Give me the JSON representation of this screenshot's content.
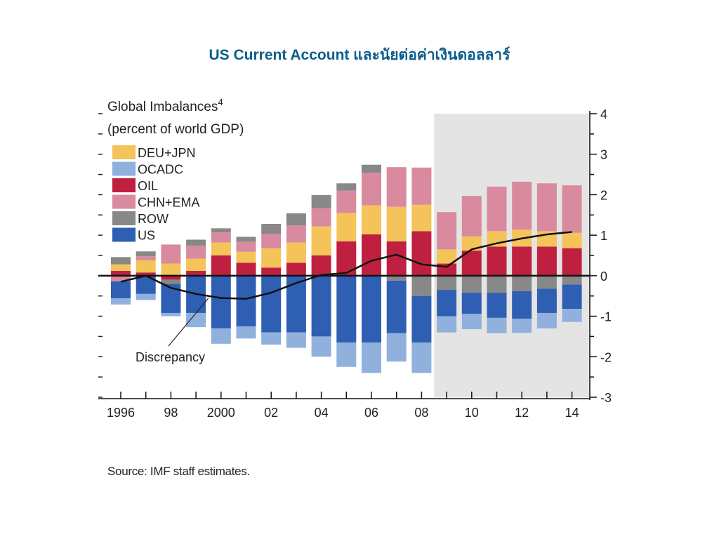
{
  "slide": {
    "title": "US Current Account และนัยต่อค่าเงินดอลลาร์",
    "source": "Source: IMF staff estimates."
  },
  "chart_data": {
    "type": "bar",
    "stacked": true,
    "title": "Global Imbalances",
    "title_superscript": "4",
    "subtitle": "(percent of world GDP)",
    "x": [
      1996,
      1997,
      1998,
      1999,
      2000,
      2001,
      2002,
      2003,
      2004,
      2005,
      2006,
      2007,
      2008,
      2009,
      2010,
      2011,
      2012,
      2013,
      2014
    ],
    "x_tick_labels": [
      "1996",
      "98",
      "2000",
      "02",
      "04",
      "06",
      "08",
      "10",
      "12",
      "14"
    ],
    "x_tick_years": [
      1996,
      1998,
      2000,
      2002,
      2004,
      2006,
      2008,
      2010,
      2012,
      2014
    ],
    "ylim": [
      -3,
      4
    ],
    "y_ticks": [
      "4",
      "3",
      "2",
      "1",
      "0",
      "-1",
      "-2",
      "-3"
    ],
    "y_tick_values": [
      4,
      3,
      2,
      1,
      0,
      -1,
      -2,
      -3
    ],
    "projection_shaded_from": 2009,
    "legend": [
      {
        "name": "DEU+JPN",
        "color": "#f4c35a"
      },
      {
        "name": "OCADC",
        "color": "#8fb1dc"
      },
      {
        "name": "OIL",
        "color": "#c0203f"
      },
      {
        "name": "CHN+EMA",
        "color": "#d98a9f"
      },
      {
        "name": "ROW",
        "color": "#888888"
      },
      {
        "name": "US",
        "color": "#2f5fb3"
      }
    ],
    "series": [
      {
        "name": "OIL",
        "color": "#c0203f",
        "values": [
          0.12,
          0.08,
          -0.1,
          0.12,
          0.5,
          0.32,
          0.2,
          0.32,
          0.5,
          0.85,
          1.02,
          0.85,
          1.1,
          0.3,
          0.62,
          0.72,
          0.72,
          0.72,
          0.68
        ]
      },
      {
        "name": "DEU+JPN",
        "color": "#f4c35a",
        "values": [
          0.16,
          0.3,
          0.3,
          0.3,
          0.32,
          0.27,
          0.48,
          0.5,
          0.72,
          0.7,
          0.72,
          0.85,
          0.65,
          0.35,
          0.35,
          0.38,
          0.42,
          0.38,
          0.38
        ]
      },
      {
        "name": "CHN+EMA",
        "color": "#d98a9f",
        "values": [
          -0.14,
          0.1,
          0.47,
          0.32,
          0.25,
          0.25,
          0.35,
          0.42,
          0.45,
          0.55,
          0.8,
          0.98,
          0.92,
          0.92,
          1.0,
          1.1,
          1.18,
          1.18,
          1.17
        ]
      },
      {
        "name": "ROW",
        "color": "#888888",
        "values": [
          0.18,
          0.12,
          -0.1,
          0.15,
          0.1,
          0.12,
          0.25,
          0.3,
          0.32,
          0.18,
          0.2,
          -0.12,
          -0.5,
          -0.35,
          -0.42,
          -0.42,
          -0.38,
          -0.32,
          -0.22
        ]
      },
      {
        "name": "US",
        "color": "#2f5fb3",
        "values": [
          -0.42,
          -0.45,
          -0.72,
          -0.92,
          -1.3,
          -1.25,
          -1.4,
          -1.4,
          -1.5,
          -1.65,
          -1.65,
          -1.3,
          -1.15,
          -0.65,
          -0.52,
          -0.62,
          -0.68,
          -0.6,
          -0.6
        ]
      },
      {
        "name": "OCADC",
        "color": "#8fb1dc",
        "values": [
          -0.15,
          -0.15,
          -0.08,
          -0.35,
          -0.38,
          -0.3,
          -0.3,
          -0.38,
          -0.5,
          -0.6,
          -0.75,
          -0.7,
          -0.75,
          -0.4,
          -0.38,
          -0.38,
          -0.35,
          -0.38,
          -0.32
        ]
      }
    ],
    "discrepancy": {
      "label": "Discrepancy",
      "values": [
        -0.15,
        0.0,
        -0.3,
        -0.45,
        -0.55,
        -0.57,
        -0.42,
        -0.18,
        0.02,
        0.07,
        0.37,
        0.52,
        0.28,
        0.22,
        0.65,
        0.8,
        0.92,
        1.02,
        1.08
      ]
    },
    "discrepancy_label_anchor": {
      "x": 1999.5,
      "y": -0.55
    }
  }
}
